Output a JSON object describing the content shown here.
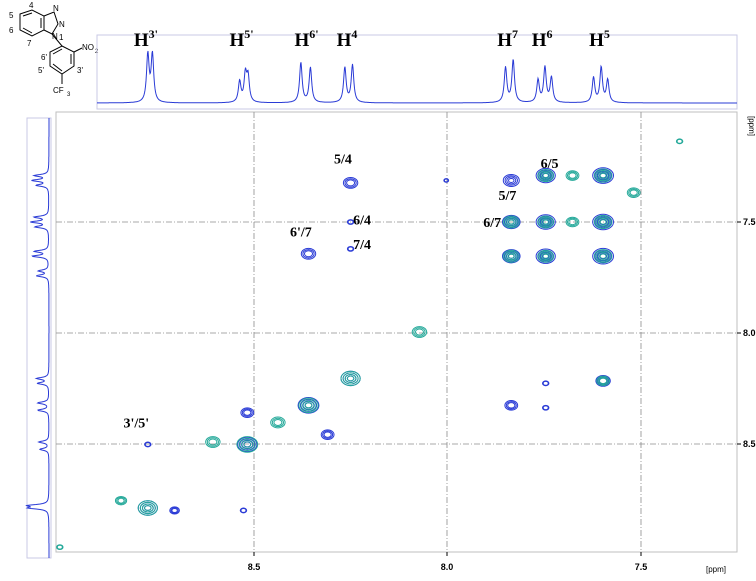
{
  "chart_data": {
    "type": "2d-nmr-contour",
    "x_axis": {
      "unit": "[ppm]",
      "ticks": [
        "8.5",
        "8.0",
        "7.5"
      ],
      "range": [
        9.03,
        7.25
      ],
      "tick_values": [
        8.5,
        8.0,
        7.5
      ]
    },
    "y_axis": {
      "unit": "[ppm]",
      "ticks": [
        "7.5",
        "8.0",
        "8.5"
      ],
      "range": [
        7.17,
        8.97
      ],
      "tick_values": [
        7.5,
        8.0,
        8.5
      ]
    },
    "top_projection": {
      "labels": [
        {
          "base": "H",
          "sup": "3'",
          "ppm": 8.79
        },
        {
          "base": "H",
          "sup": "5'",
          "ppm": 8.54
        },
        {
          "base": "H",
          "sup": "6'",
          "ppm": 8.37
        },
        {
          "base": "H",
          "sup": "4",
          "ppm": 8.26
        },
        {
          "base": "H",
          "sup": "7",
          "ppm": 7.84
        },
        {
          "base": "H",
          "sup": "6",
          "ppm": 7.75
        },
        {
          "base": "H",
          "sup": "5",
          "ppm": 7.6
        }
      ],
      "peaks": [
        {
          "ppm": 8.79,
          "h": 0.95
        },
        {
          "ppm": 8.778,
          "h": 0.95
        },
        {
          "ppm": 8.55,
          "h": 0.42
        },
        {
          "ppm": 8.535,
          "h": 0.55
        },
        {
          "ppm": 8.528,
          "h": 0.5
        },
        {
          "ppm": 8.39,
          "h": 0.8
        },
        {
          "ppm": 8.365,
          "h": 0.7
        },
        {
          "ppm": 8.275,
          "h": 0.7
        },
        {
          "ppm": 8.255,
          "h": 0.75
        },
        {
          "ppm": 7.855,
          "h": 0.7
        },
        {
          "ppm": 7.835,
          "h": 0.85
        },
        {
          "ppm": 7.77,
          "h": 0.45
        },
        {
          "ppm": 7.752,
          "h": 0.7
        },
        {
          "ppm": 7.735,
          "h": 0.5
        },
        {
          "ppm": 7.625,
          "h": 0.5
        },
        {
          "ppm": 7.605,
          "h": 0.7
        },
        {
          "ppm": 7.588,
          "h": 0.45
        }
      ]
    },
    "left_projection": {
      "peaks": [
        {
          "ppm": 7.43,
          "h": 0.7
        },
        {
          "ppm": 7.45,
          "h": 0.8
        },
        {
          "ppm": 7.47,
          "h": 0.6
        },
        {
          "ppm": 7.6,
          "h": 0.7
        },
        {
          "ppm": 7.62,
          "h": 0.85
        },
        {
          "ppm": 7.64,
          "h": 0.65
        },
        {
          "ppm": 7.74,
          "h": 0.7
        },
        {
          "ppm": 7.76,
          "h": 0.8
        },
        {
          "ppm": 7.82,
          "h": 0.5
        },
        {
          "ppm": 7.84,
          "h": 0.6
        },
        {
          "ppm": 8.26,
          "h": 0.6
        },
        {
          "ppm": 8.28,
          "h": 0.55
        },
        {
          "ppm": 8.36,
          "h": 0.55
        },
        {
          "ppm": 8.39,
          "h": 0.55
        },
        {
          "ppm": 8.52,
          "h": 0.5
        },
        {
          "ppm": 8.55,
          "h": 0.45
        },
        {
          "ppm": 8.78,
          "h": 0.95
        },
        {
          "ppm": 8.79,
          "h": 0.9
        }
      ]
    },
    "contours": [
      {
        "x": 7.6,
        "y": 7.43,
        "c": "#2a3bd6",
        "s": 1.3
      },
      {
        "x": 7.6,
        "y": 7.43,
        "c": "#25a99a",
        "s": 1.1
      },
      {
        "x": 7.6,
        "y": 7.62,
        "c": "#2a3bd6",
        "s": 1.3
      },
      {
        "x": 7.6,
        "y": 7.62,
        "c": "#25a99a",
        "s": 1.1
      },
      {
        "x": 7.6,
        "y": 7.76,
        "c": "#2a3bd6",
        "s": 1.3
      },
      {
        "x": 7.6,
        "y": 7.76,
        "c": "#25a99a",
        "s": 1.1
      },
      {
        "x": 7.75,
        "y": 7.43,
        "c": "#2a3bd6",
        "s": 1.2
      },
      {
        "x": 7.75,
        "y": 7.43,
        "c": "#25a99a",
        "s": 1.0
      },
      {
        "x": 7.75,
        "y": 7.62,
        "c": "#2a3bd6",
        "s": 1.2
      },
      {
        "x": 7.75,
        "y": 7.62,
        "c": "#25a99a",
        "s": 1.0
      },
      {
        "x": 7.75,
        "y": 7.76,
        "c": "#2a3bd6",
        "s": 1.2
      },
      {
        "x": 7.75,
        "y": 7.76,
        "c": "#25a99a",
        "s": 1.0
      },
      {
        "x": 7.84,
        "y": 7.45,
        "c": "#2a3bd6",
        "s": 1.0
      },
      {
        "x": 7.84,
        "y": 7.62,
        "c": "#2a3bd6",
        "s": 1.1
      },
      {
        "x": 7.84,
        "y": 7.62,
        "c": "#25a99a",
        "s": 1.0
      },
      {
        "x": 7.84,
        "y": 7.76,
        "c": "#2a3bd6",
        "s": 1.1
      },
      {
        "x": 7.84,
        "y": 7.76,
        "c": "#25a99a",
        "s": 1.0
      },
      {
        "x": 7.68,
        "y": 7.62,
        "c": "#25a99a",
        "s": 0.8
      },
      {
        "x": 7.68,
        "y": 7.43,
        "c": "#25a99a",
        "s": 0.8
      },
      {
        "x": 7.52,
        "y": 7.5,
        "c": "#25a99a",
        "s": 0.8
      },
      {
        "x": 7.6,
        "y": 8.27,
        "c": "#2a3bd6",
        "s": 0.9
      },
      {
        "x": 7.6,
        "y": 8.27,
        "c": "#25a99a",
        "s": 0.8
      },
      {
        "x": 7.84,
        "y": 8.37,
        "c": "#2a3bd6",
        "s": 0.8
      },
      {
        "x": 7.75,
        "y": 8.28,
        "c": "#2a3bd6",
        "s": 0.4
      },
      {
        "x": 7.75,
        "y": 8.38,
        "c": "#2a3bd6",
        "s": 0.4
      },
      {
        "x": 8.26,
        "y": 7.46,
        "c": "#2a3bd6",
        "s": 0.9
      },
      {
        "x": 8.26,
        "y": 7.62,
        "c": "#2a3bd6",
        "s": 0.4
      },
      {
        "x": 8.26,
        "y": 7.73,
        "c": "#2a3bd6",
        "s": 0.4
      },
      {
        "x": 8.37,
        "y": 7.75,
        "c": "#2a3bd6",
        "s": 0.9
      },
      {
        "x": 8.08,
        "y": 8.07,
        "c": "#25a99a",
        "s": 0.9
      },
      {
        "x": 8.26,
        "y": 8.26,
        "c": "#2a3bd6",
        "s": 1.2
      },
      {
        "x": 8.26,
        "y": 8.26,
        "c": "#25a99a",
        "s": 1.2
      },
      {
        "x": 8.37,
        "y": 8.37,
        "c": "#2a3bd6",
        "s": 1.3
      },
      {
        "x": 8.37,
        "y": 8.37,
        "c": "#25a99a",
        "s": 1.2
      },
      {
        "x": 8.53,
        "y": 8.53,
        "c": "#2a3bd6",
        "s": 1.2
      },
      {
        "x": 8.53,
        "y": 8.53,
        "c": "#25a99a",
        "s": 1.3
      },
      {
        "x": 8.45,
        "y": 8.44,
        "c": "#25a99a",
        "s": 0.9
      },
      {
        "x": 8.62,
        "y": 8.52,
        "c": "#25a99a",
        "s": 0.9
      },
      {
        "x": 8.53,
        "y": 8.4,
        "c": "#2a3bd6",
        "s": 0.8
      },
      {
        "x": 8.32,
        "y": 8.49,
        "c": "#2a3bd6",
        "s": 0.8
      },
      {
        "x": 8.79,
        "y": 8.79,
        "c": "#2a3bd6",
        "s": 1.2
      },
      {
        "x": 8.79,
        "y": 8.79,
        "c": "#25a99a",
        "s": 1.2
      },
      {
        "x": 8.86,
        "y": 8.76,
        "c": "#25a99a",
        "s": 0.7
      },
      {
        "x": 8.72,
        "y": 8.8,
        "c": "#2a3bd6",
        "s": 0.6
      },
      {
        "x": 8.79,
        "y": 8.53,
        "c": "#2a3bd6",
        "s": 0.4
      },
      {
        "x": 8.54,
        "y": 8.8,
        "c": "#2a3bd6",
        "s": 0.4
      },
      {
        "x": 8.01,
        "y": 7.45,
        "c": "#2a3bd6",
        "s": 0.3
      },
      {
        "x": 7.4,
        "y": 7.29,
        "c": "#25a99a",
        "s": 0.4
      },
      {
        "x": 9.02,
        "y": 8.95,
        "c": "#25a99a",
        "s": 0.4
      }
    ],
    "cross_peak_labels": [
      {
        "text": "5/4",
        "x": 8.28,
        "y": 7.38
      },
      {
        "text": "6/4",
        "x": 8.23,
        "y": 7.63
      },
      {
        "text": "7/4",
        "x": 8.23,
        "y": 7.73
      },
      {
        "text": "6'/7",
        "x": 8.39,
        "y": 7.68
      },
      {
        "text": "5/7",
        "x": 7.85,
        "y": 7.53
      },
      {
        "text": "6/5",
        "x": 7.74,
        "y": 7.4
      },
      {
        "text": "6/7",
        "x": 7.89,
        "y": 7.64
      },
      {
        "text": "3'/5'",
        "x": 8.82,
        "y": 8.46
      }
    ]
  },
  "structure": {
    "atom_labels": [
      "4",
      "5",
      "6",
      "7",
      "6'",
      "5'",
      "3'",
      "N",
      "N",
      "N",
      "1",
      "NO",
      "2",
      "CF",
      "3"
    ]
  }
}
